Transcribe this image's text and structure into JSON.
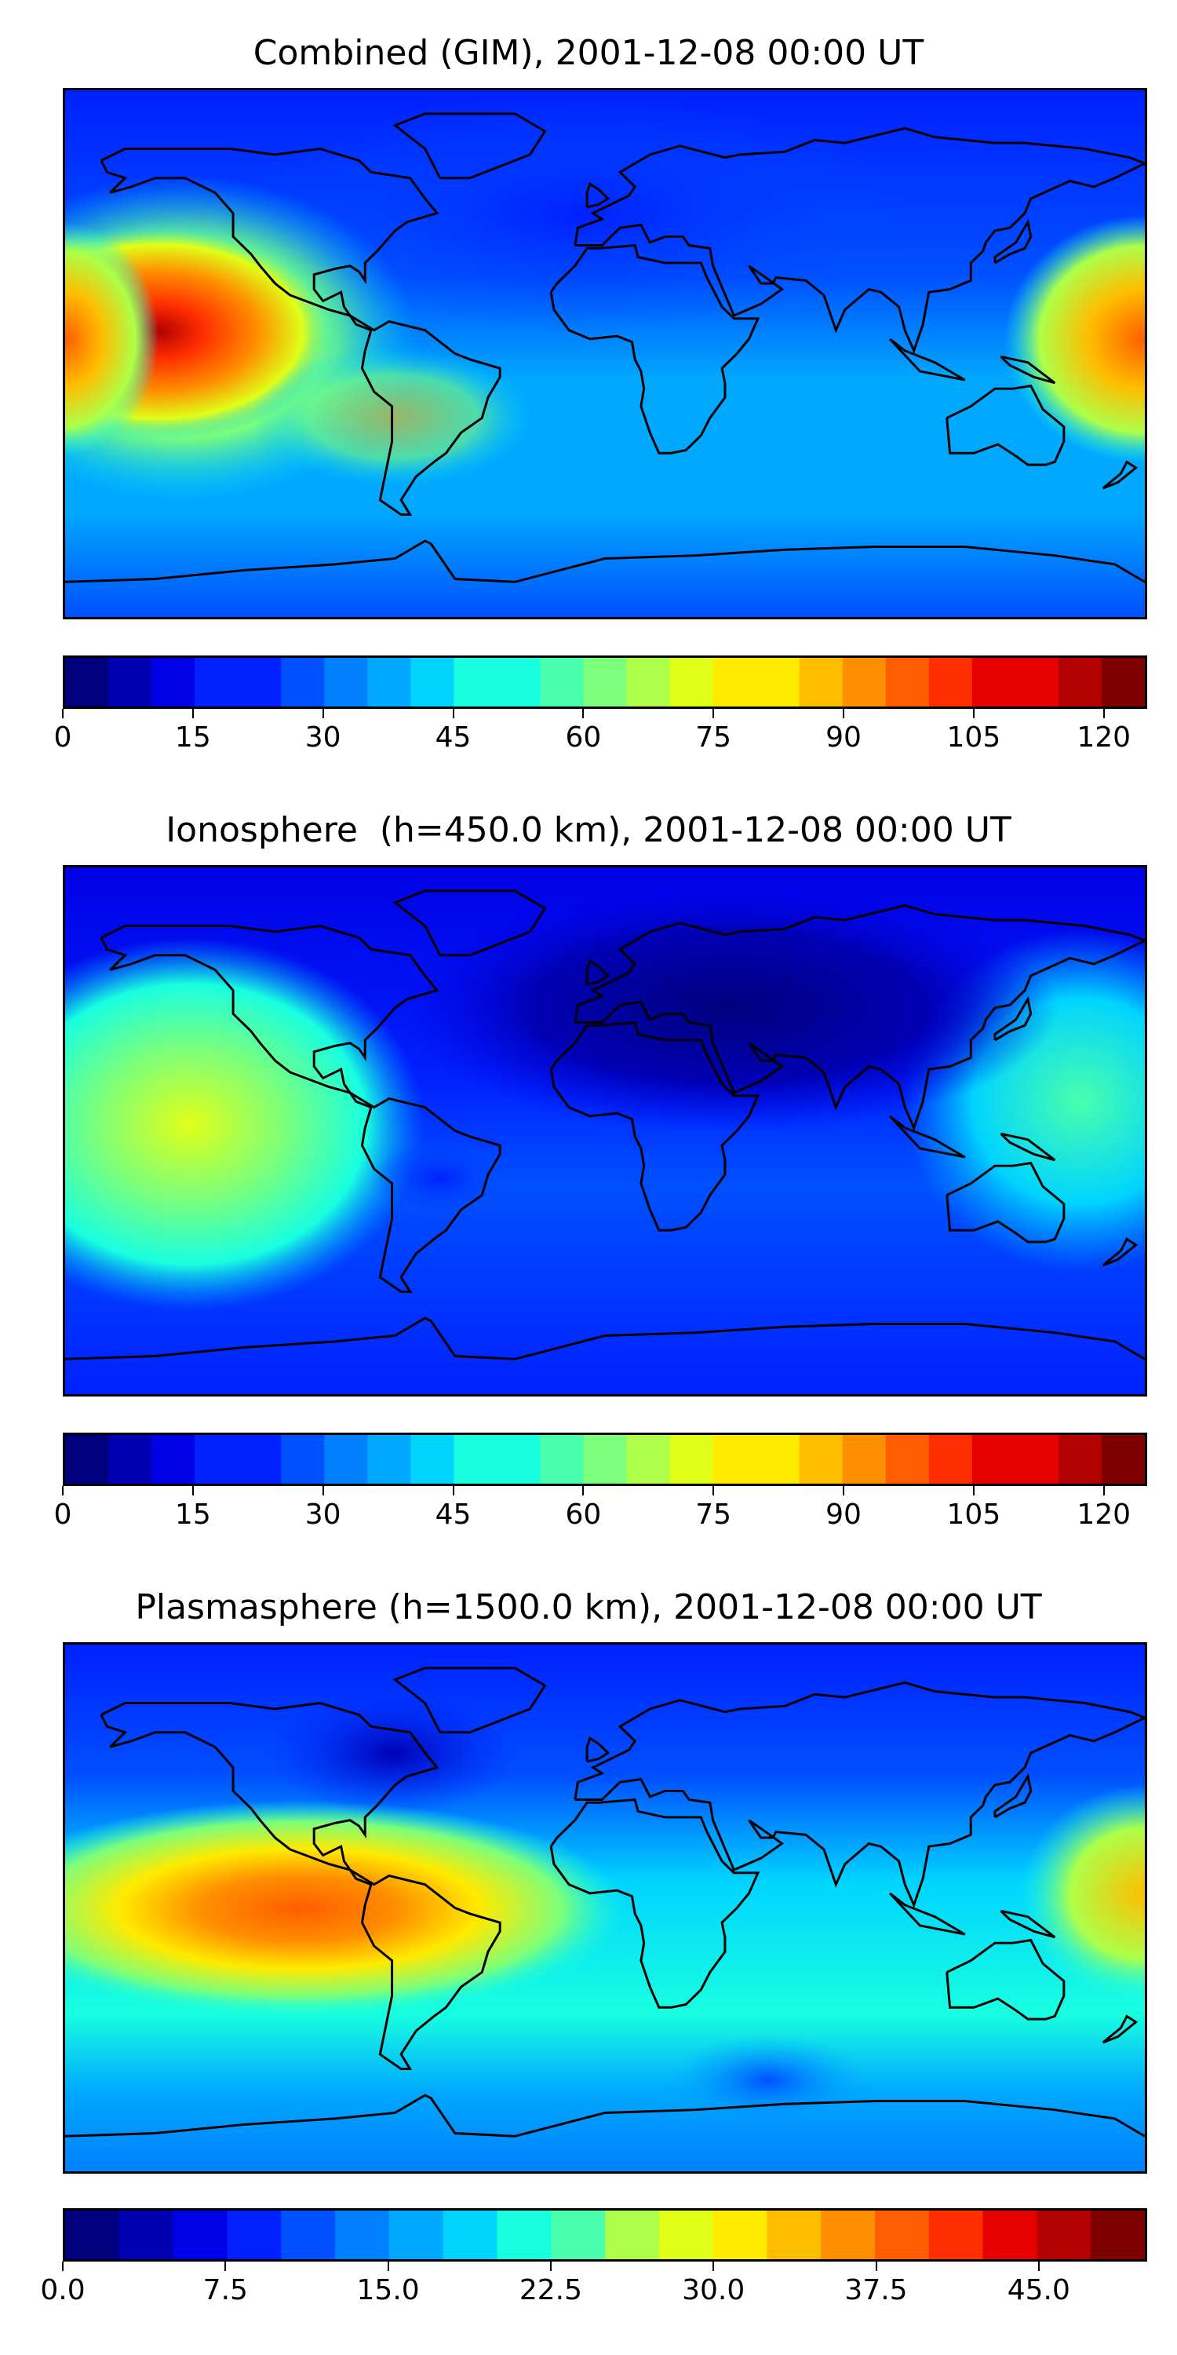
{
  "colors": [
    "#00007f",
    "#0000b3",
    "#0000e6",
    "#0020ff",
    "#0050ff",
    "#0080ff",
    "#00a8ff",
    "#00d4ff",
    "#18ffe0",
    "#49ffad",
    "#7cff7a",
    "#adff49",
    "#e0ff18",
    "#ffea00",
    "#ffbd00",
    "#ff8f00",
    "#ff5d00",
    "#ff2e00",
    "#e60000",
    "#b30000",
    "#7f0000"
  ],
  "panels": [
    {
      "title": "Combined (GIM), 2001-12-08 00:00 UT",
      "ticks": [
        "0",
        "15",
        "30",
        "45",
        "60",
        "75",
        "90",
        "105",
        "120"
      ],
      "levels": 25,
      "vmax": 125
    },
    {
      "title": "Ionosphere  (h=450.0 km), 2001-12-08 00:00 UT",
      "ticks": [
        "0",
        "15",
        "30",
        "45",
        "60",
        "75",
        "90",
        "105",
        "120"
      ],
      "levels": 25,
      "vmax": 125
    },
    {
      "title": "Plasmasphere (h=1500.0 km), 2001-12-08 00:00 UT",
      "ticks": [
        "0.0",
        "7.5",
        "15.0",
        "22.5",
        "30.0",
        "37.5",
        "45.0"
      ],
      "levels": 20,
      "vmax": 50
    }
  ],
  "chart_data": [
    {
      "type": "heatmap",
      "title": "Combined (GIM), 2001-12-08 00:00 UT",
      "colorbar_ticks": [
        0,
        15,
        30,
        45,
        60,
        75,
        90,
        105,
        120
      ],
      "colorbar_range": [
        0,
        125
      ],
      "features": [
        {
          "lon": -155,
          "lat": 12,
          "value": 118
        },
        {
          "lon": 175,
          "lat": 5,
          "value": 100
        },
        {
          "lon": -80,
          "lat": -10,
          "value": 70
        },
        {
          "lon": 40,
          "lat": 50,
          "value": 20
        },
        {
          "lon": 0,
          "lat": -60,
          "value": 35
        }
      ]
    },
    {
      "type": "heatmap",
      "title": "Ionosphere  (h=450.0 km), 2001-12-08 00:00 UT",
      "colorbar_ticks": [
        0,
        15,
        30,
        45,
        60,
        75,
        90,
        105,
        120
      ],
      "colorbar_range": [
        0,
        125
      ],
      "features": [
        {
          "lon": -160,
          "lat": 18,
          "value": 78
        },
        {
          "lon": -175,
          "lat": -12,
          "value": 70
        },
        {
          "lon": 160,
          "lat": 15,
          "value": 60
        },
        {
          "lon": 40,
          "lat": 40,
          "value": 5
        },
        {
          "lon": -60,
          "lat": -20,
          "value": 20
        }
      ]
    },
    {
      "type": "heatmap",
      "title": "Plasmasphere (h=1500.0 km), 2001-12-08 00:00 UT",
      "colorbar_ticks": [
        0,
        7.5,
        15,
        22.5,
        30,
        37.5,
        45
      ],
      "colorbar_range": [
        0,
        50
      ],
      "features": [
        {
          "lon": -110,
          "lat": 5,
          "value": 40
        },
        {
          "lon": -70,
          "lat": 5,
          "value": 42
        },
        {
          "lon": 175,
          "lat": 5,
          "value": 35
        },
        {
          "lon": -100,
          "lat": 62,
          "value": 5
        },
        {
          "lon": 40,
          "lat": -50,
          "value": 15
        }
      ]
    }
  ]
}
